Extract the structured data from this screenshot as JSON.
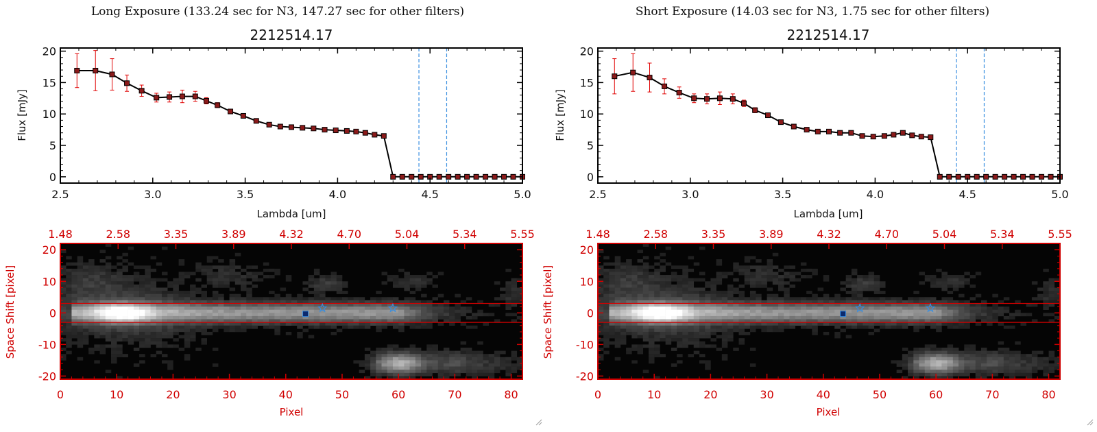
{
  "panels": [
    {
      "heading": "Long Exposure (133.24 sec for N3, 147.27 sec for other filters)",
      "spectrum": {
        "title": "2212514.17",
        "xlabel": "Lambda [um]",
        "ylabel": "Flux [mJy]"
      },
      "image": {
        "xlabel": "Pixel",
        "ylabel": "Space Shift [pixel]",
        "top_ticks": [
          "1.48",
          "2.58",
          "3.35",
          "3.89",
          "4.32",
          "4.70",
          "5.04",
          "5.34",
          "5.55"
        ]
      }
    },
    {
      "heading": "Short Exposure (14.03 sec for N3, 1.75 sec for other filters)",
      "spectrum": {
        "title": "2212514.17",
        "xlabel": "Lambda [um]",
        "ylabel": "Flux [mJy]"
      },
      "image": {
        "xlabel": "Pixel",
        "ylabel": "Space Shift [pixel]",
        "top_ticks": [
          "1.48",
          "2.58",
          "3.35",
          "3.89",
          "4.32",
          "4.70",
          "5.04",
          "5.34",
          "5.55"
        ]
      }
    }
  ],
  "chart_data": [
    {
      "type": "line",
      "title": "2212514.17",
      "xlabel": "Lambda [um]",
      "ylabel": "Flux [mJy]",
      "xlim": [
        2.5,
        5.0
      ],
      "ylim": [
        -1,
        20.5
      ],
      "x_ticks": [
        "2.5",
        "3.0",
        "3.5",
        "4.0",
        "4.5",
        "5.0"
      ],
      "y_ticks": [
        "0",
        "5",
        "10",
        "15",
        "20"
      ],
      "vlines": [
        4.44,
        4.59
      ],
      "colors": {
        "line": "#000000",
        "marker": "#8b1a1a",
        "error": "#e00000",
        "vline": "#3a8fe0",
        "zero": "#e00000"
      },
      "x": [
        2.59,
        2.69,
        2.78,
        2.86,
        2.94,
        3.02,
        3.09,
        3.16,
        3.23,
        3.29,
        3.35,
        3.42,
        3.49,
        3.56,
        3.63,
        3.69,
        3.75,
        3.81,
        3.87,
        3.93,
        3.99,
        4.05,
        4.1,
        4.15,
        4.2,
        4.25,
        4.3,
        4.35,
        4.4,
        4.45,
        4.5,
        4.55,
        4.6,
        4.65,
        4.7,
        4.75,
        4.8,
        4.85,
        4.9,
        4.95,
        5.0
      ],
      "y": [
        16.9,
        16.9,
        16.3,
        14.9,
        13.7,
        12.6,
        12.7,
        12.8,
        12.8,
        12.1,
        11.4,
        10.4,
        9.7,
        8.9,
        8.3,
        8.0,
        7.9,
        7.8,
        7.7,
        7.5,
        7.4,
        7.3,
        7.2,
        7.0,
        6.7,
        6.5,
        0,
        0,
        0,
        0,
        0,
        0,
        0,
        0,
        0,
        0,
        0,
        0,
        0,
        0,
        0
      ],
      "yerr": [
        2.7,
        3.2,
        2.5,
        1.3,
        0.9,
        0.7,
        0.8,
        1.0,
        0.8,
        0.5,
        0.4,
        0.3,
        0.2,
        0.2,
        0.2,
        0.2,
        0.2,
        0.1,
        0.1,
        0.1,
        0.1,
        0.1,
        0.1,
        0.1,
        0.1,
        0.1,
        0,
        0,
        0,
        0,
        0,
        0,
        0,
        0,
        0,
        0,
        0,
        0,
        0,
        0,
        0
      ]
    },
    {
      "type": "heatmap",
      "xlabel": "Pixel",
      "ylabel": "Space Shift [pixel]",
      "xlim": [
        0,
        82
      ],
      "ylim": [
        -21,
        22
      ],
      "x_ticks": [
        "0",
        "10",
        "20",
        "30",
        "40",
        "50",
        "60",
        "70",
        "80"
      ],
      "y_ticks": [
        "-20",
        "-10",
        "0",
        "10",
        "20"
      ],
      "hlines": [
        3,
        -3
      ],
      "markers": [
        {
          "x": 43.5,
          "y": -0.3,
          "shape": "square"
        },
        {
          "x": 46.5,
          "y": 1.5,
          "shape": "star"
        },
        {
          "x": 59,
          "y": 1.5,
          "shape": "star"
        }
      ],
      "colors": {
        "axis": "#d00000",
        "marker": "#3a8fe0"
      }
    },
    {
      "type": "line",
      "title": "2212514.17",
      "xlabel": "Lambda [um]",
      "ylabel": "Flux [mJy]",
      "xlim": [
        2.5,
        5.0
      ],
      "ylim": [
        -1,
        20.5
      ],
      "x_ticks": [
        "2.5",
        "3.0",
        "3.5",
        "4.0",
        "4.5",
        "5.0"
      ],
      "y_ticks": [
        "0",
        "5",
        "10",
        "15",
        "20"
      ],
      "vlines": [
        4.44,
        4.59
      ],
      "colors": {
        "line": "#000000",
        "marker": "#8b1a1a",
        "error": "#e00000",
        "vline": "#3a8fe0",
        "zero": "#e00000"
      },
      "x": [
        2.59,
        2.69,
        2.78,
        2.86,
        2.94,
        3.02,
        3.09,
        3.16,
        3.23,
        3.29,
        3.35,
        3.42,
        3.49,
        3.56,
        3.63,
        3.69,
        3.75,
        3.81,
        3.87,
        3.93,
        3.99,
        4.05,
        4.1,
        4.15,
        4.2,
        4.25,
        4.3,
        4.35,
        4.4,
        4.45,
        4.5,
        4.55,
        4.6,
        4.65,
        4.7,
        4.75,
        4.8,
        4.85,
        4.9,
        4.95,
        5.0
      ],
      "y": [
        16.0,
        16.6,
        15.8,
        14.4,
        13.4,
        12.5,
        12.4,
        12.5,
        12.4,
        11.7,
        10.6,
        9.8,
        8.7,
        8.0,
        7.5,
        7.2,
        7.2,
        7.0,
        7.0,
        6.5,
        6.4,
        6.5,
        6.7,
        7.0,
        6.6,
        6.4,
        6.3,
        0,
        0,
        0,
        0,
        0,
        0,
        0,
        0,
        0,
        0,
        0,
        0,
        0,
        0
      ],
      "yerr": [
        2.8,
        3.0,
        2.3,
        1.2,
        0.9,
        0.7,
        0.8,
        1.0,
        0.8,
        0.5,
        0.4,
        0.3,
        0.2,
        0.2,
        0.2,
        0.2,
        0.2,
        0.2,
        0.1,
        0.1,
        0.1,
        0.1,
        0.1,
        0.1,
        0.1,
        0.1,
        0.1,
        0,
        0,
        0,
        0,
        0,
        0,
        0,
        0,
        0,
        0,
        0,
        0,
        0,
        0
      ]
    },
    {
      "type": "heatmap",
      "xlabel": "Pixel",
      "ylabel": "Space Shift [pixel]",
      "xlim": [
        0,
        82
      ],
      "ylim": [
        -21,
        22
      ],
      "x_ticks": [
        "0",
        "10",
        "20",
        "30",
        "40",
        "50",
        "60",
        "70",
        "80"
      ],
      "y_ticks": [
        "-20",
        "-10",
        "0",
        "10",
        "20"
      ],
      "hlines": [
        3,
        -3
      ],
      "markers": [
        {
          "x": 43.5,
          "y": -0.3,
          "shape": "square"
        },
        {
          "x": 46.5,
          "y": 1.5,
          "shape": "star"
        },
        {
          "x": 59,
          "y": 1.5,
          "shape": "star"
        }
      ],
      "colors": {
        "axis": "#d00000",
        "marker": "#3a8fe0"
      }
    }
  ]
}
